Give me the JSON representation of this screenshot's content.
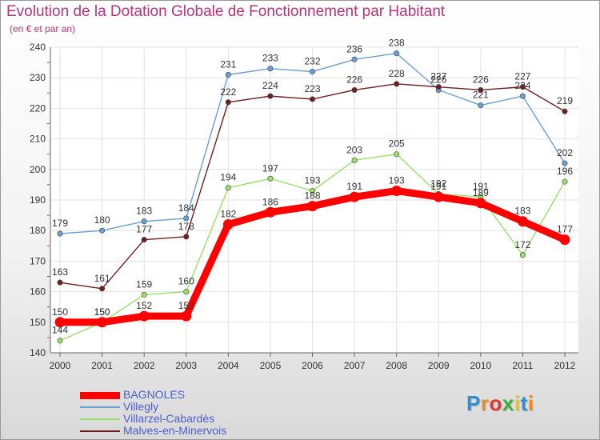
{
  "title": "Evolution de la Dotation Globale de Fonctionnement par Habitant",
  "subtitle": "(en € et par an)",
  "logo": {
    "text": "Proxiti"
  },
  "chart_data": {
    "type": "line",
    "title": "Evolution de la Dotation Globale de Fonctionnement par Habitant",
    "ylabel": "(en € et par an)",
    "xlabel": "",
    "grid": true,
    "ylim": [
      140,
      240
    ],
    "yticks": [
      140,
      150,
      160,
      170,
      180,
      190,
      200,
      210,
      220,
      230,
      240
    ],
    "x": [
      "2000",
      "2001",
      "2002",
      "2003",
      "2004",
      "2005",
      "2006",
      "2007",
      "2008",
      "2009",
      "2010",
      "2011",
      "2012"
    ],
    "series": [
      {
        "name": "BAGNOLES",
        "color": "#ff0000",
        "values": [
          150,
          150,
          152,
          152,
          182,
          186,
          188,
          191,
          193,
          191,
          189,
          183,
          177
        ]
      },
      {
        "name": "Villegly",
        "color": "#6a9fd4",
        "values": [
          179,
          180,
          183,
          184,
          231,
          233,
          232,
          236,
          238,
          226,
          221,
          224,
          202
        ]
      },
      {
        "name": "Villarzel-Cabardès",
        "color": "#99e066",
        "values": [
          144,
          150,
          159,
          160,
          194,
          197,
          193,
          203,
          205,
          192,
          191,
          172,
          196
        ]
      },
      {
        "name": "Malves-en-Minervois",
        "color": "#6e1f1f",
        "values": [
          163,
          161,
          177,
          178,
          222,
          224,
          223,
          226,
          228,
          227,
          226,
          227,
          219
        ]
      }
    ]
  }
}
